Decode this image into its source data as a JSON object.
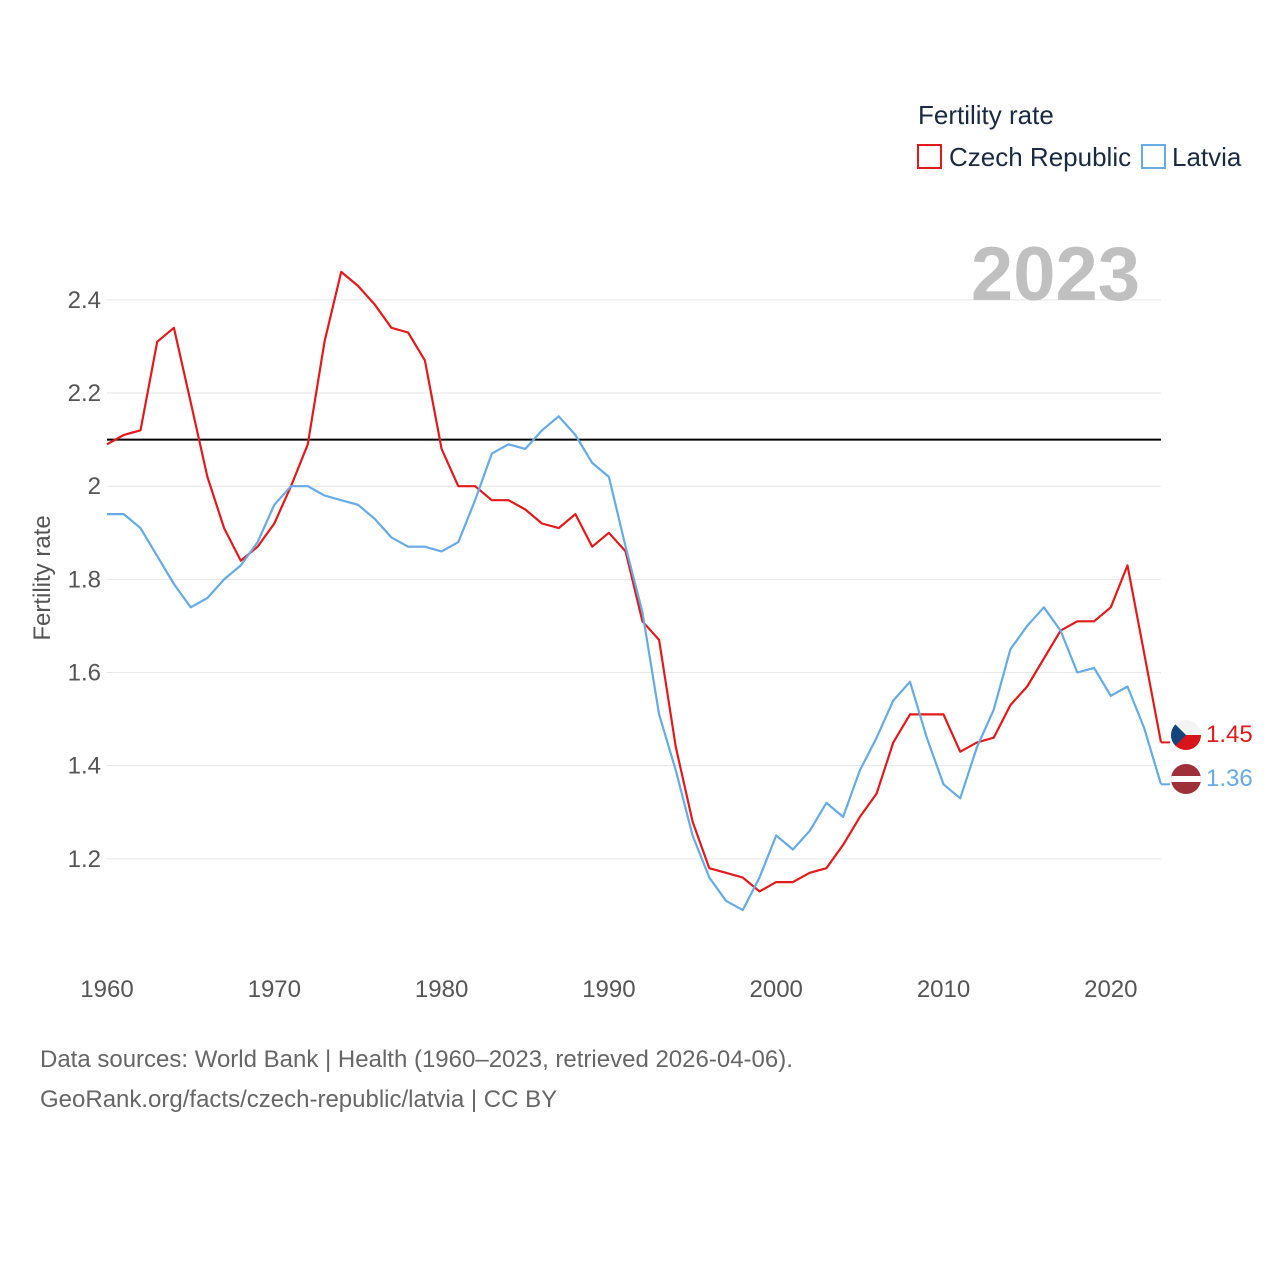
{
  "chart_data": {
    "type": "line",
    "ylabel": "Fertility rate",
    "legend_title": "Fertility rate",
    "year_label": "2023",
    "xlim": [
      1960,
      2023
    ],
    "ylim": [
      1.0,
      2.55
    ],
    "xticks": [
      "1960",
      "1970",
      "1980",
      "1990",
      "2000",
      "2010",
      "2020"
    ],
    "yticks": [
      "1.2",
      "1.4",
      "1.6",
      "1.8",
      "2",
      "2.2",
      "2.4"
    ],
    "reference_line": 2.1,
    "x": [
      1960,
      1961,
      1962,
      1963,
      1964,
      1965,
      1966,
      1967,
      1968,
      1969,
      1970,
      1971,
      1972,
      1973,
      1974,
      1975,
      1976,
      1977,
      1978,
      1979,
      1980,
      1981,
      1982,
      1983,
      1984,
      1985,
      1986,
      1987,
      1988,
      1989,
      1990,
      1991,
      1992,
      1993,
      1994,
      1995,
      1996,
      1997,
      1998,
      1999,
      2000,
      2001,
      2002,
      2003,
      2004,
      2005,
      2006,
      2007,
      2008,
      2009,
      2010,
      2011,
      2012,
      2013,
      2014,
      2015,
      2016,
      2017,
      2018,
      2019,
      2020,
      2021,
      2022,
      2023
    ],
    "series": [
      {
        "name": "Czech Republic",
        "color": "#e31a1c",
        "end_label": "1.45",
        "values": [
          2.09,
          2.11,
          2.12,
          2.31,
          2.34,
          2.18,
          2.02,
          1.91,
          1.84,
          1.87,
          1.92,
          2.0,
          2.09,
          2.31,
          2.46,
          2.43,
          2.39,
          2.34,
          2.33,
          2.27,
          2.08,
          2.0,
          2.0,
          1.97,
          1.97,
          1.95,
          1.92,
          1.91,
          1.94,
          1.87,
          1.9,
          1.86,
          1.71,
          1.67,
          1.44,
          1.28,
          1.18,
          1.17,
          1.16,
          1.13,
          1.15,
          1.15,
          1.17,
          1.18,
          1.23,
          1.29,
          1.34,
          1.45,
          1.51,
          1.51,
          1.51,
          1.43,
          1.45,
          1.46,
          1.53,
          1.57,
          1.63,
          1.69,
          1.71,
          1.71,
          1.74,
          1.83,
          1.64,
          1.45
        ]
      },
      {
        "name": "Latvia",
        "color": "#66aae6",
        "end_label": "1.36",
        "values": [
          1.94,
          1.94,
          1.91,
          1.85,
          1.79,
          1.74,
          1.76,
          1.8,
          1.83,
          1.88,
          1.96,
          2.0,
          2.0,
          1.98,
          1.97,
          1.96,
          1.93,
          1.89,
          1.87,
          1.87,
          1.86,
          1.88,
          1.97,
          2.07,
          2.09,
          2.08,
          2.12,
          2.15,
          2.11,
          2.05,
          2.02,
          1.87,
          1.73,
          1.51,
          1.39,
          1.25,
          1.16,
          1.11,
          1.09,
          1.16,
          1.25,
          1.22,
          1.26,
          1.32,
          1.29,
          1.39,
          1.46,
          1.54,
          1.58,
          1.46,
          1.36,
          1.33,
          1.44,
          1.52,
          1.65,
          1.7,
          1.74,
          1.69,
          1.6,
          1.61,
          1.55,
          1.57,
          1.48,
          1.36
        ]
      }
    ]
  },
  "footer": {
    "line1": "Data sources: World Bank | Health (1960–2023, retrieved 2026-04-06).",
    "line2": "GeoRank.org/facts/czech-republic/latvia | CC BY"
  }
}
